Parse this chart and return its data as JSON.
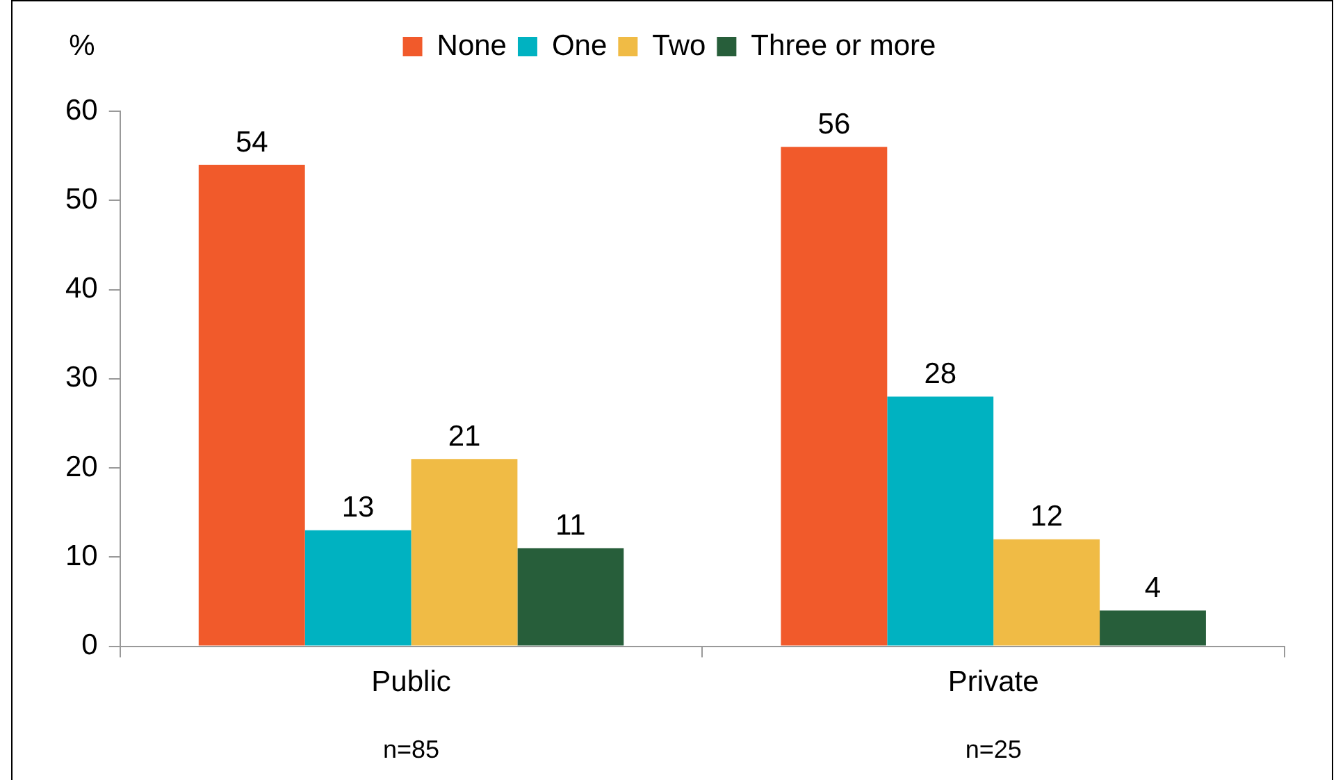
{
  "chart_data": {
    "type": "bar",
    "ylabel": "%",
    "categories": [
      "Public",
      "Private"
    ],
    "series": [
      {
        "name": "None",
        "color": "#f15a2b",
        "values": [
          54,
          56
        ]
      },
      {
        "name": "One",
        "color": "#00b2c1",
        "values": [
          13,
          28
        ]
      },
      {
        "name": "Two",
        "color": "#f0bb45",
        "values": [
          21,
          12
        ]
      },
      {
        "name": "Three or more",
        "color": "#275e3a",
        "values": [
          11,
          4
        ]
      }
    ],
    "ylim": [
      0,
      60
    ],
    "yticks": [
      0,
      10,
      20,
      30,
      40,
      50,
      60
    ],
    "data_labels": true,
    "grid": false,
    "legend": "top",
    "annotations": [
      "n=85",
      "n=25"
    ]
  }
}
